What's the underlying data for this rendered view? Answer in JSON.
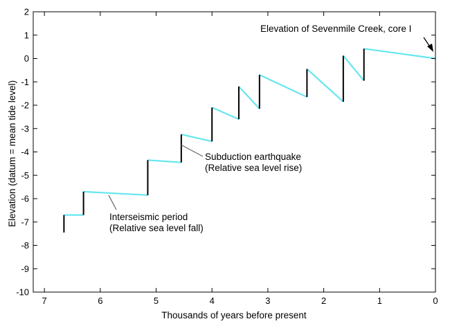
{
  "chart_data": {
    "type": "line",
    "title": "",
    "xlabel": "Thousands of years before present",
    "ylabel": "Elevation (datum = mean tide level)",
    "xlim": [
      7.2,
      0
    ],
    "ylim": [
      -10,
      2
    ],
    "x_ticks": [
      7,
      6,
      5,
      4,
      3,
      2,
      1,
      0
    ],
    "y_ticks": [
      2,
      1,
      0,
      -1,
      -2,
      -3,
      -4,
      -5,
      -6,
      -7,
      -8,
      -9,
      -10
    ],
    "grid": false,
    "legend": "none",
    "colors": {
      "interseismic": "#66e6f0",
      "earthquake": "#000000",
      "axis": "#000000",
      "leader": "#666666"
    },
    "interseismic_segments": [
      [
        [
          6.65,
          -6.7
        ],
        [
          6.3,
          -6.7
        ]
      ],
      [
        [
          6.3,
          -5.7
        ],
        [
          5.15,
          -5.85
        ]
      ],
      [
        [
          5.15,
          -4.35
        ],
        [
          4.55,
          -4.45
        ]
      ],
      [
        [
          4.55,
          -3.25
        ],
        [
          4.0,
          -3.55
        ]
      ],
      [
        [
          4.0,
          -2.1
        ],
        [
          3.52,
          -2.6
        ]
      ],
      [
        [
          3.52,
          -1.2
        ],
        [
          3.15,
          -2.15
        ]
      ],
      [
        [
          3.15,
          -0.7
        ],
        [
          2.3,
          -1.65
        ]
      ],
      [
        [
          2.3,
          -0.45
        ],
        [
          1.65,
          -1.85
        ]
      ],
      [
        [
          1.65,
          0.12
        ],
        [
          1.28,
          -0.95
        ]
      ],
      [
        [
          1.28,
          0.42
        ],
        [
          0,
          0
        ]
      ]
    ],
    "earthquake_jumps": [
      [
        6.65,
        -7.45,
        -6.7
      ],
      [
        6.3,
        -6.7,
        -5.7
      ],
      [
        5.15,
        -5.85,
        -4.35
      ],
      [
        4.55,
        -4.45,
        -3.25
      ],
      [
        4.0,
        -3.55,
        -2.1
      ],
      [
        3.52,
        -2.6,
        -1.2
      ],
      [
        3.15,
        -2.15,
        -0.7
      ],
      [
        2.3,
        -1.65,
        -0.45
      ],
      [
        1.65,
        -1.85,
        0.12
      ],
      [
        1.28,
        -0.95,
        0.42
      ]
    ],
    "annotations": [
      {
        "lines": [
          "Elevation of Sevenmile Creek, core I"
        ],
        "point": [
          0.02,
          -0.05
        ]
      },
      {
        "lines": [
          "Subduction earthquake",
          "(Relative sea level rise)"
        ],
        "point": [
          4.55,
          -3.7
        ]
      },
      {
        "lines": [
          "Interseismic period",
          "(Relative sea level fall)"
        ],
        "point": [
          5.85,
          -5.85
        ]
      }
    ]
  }
}
